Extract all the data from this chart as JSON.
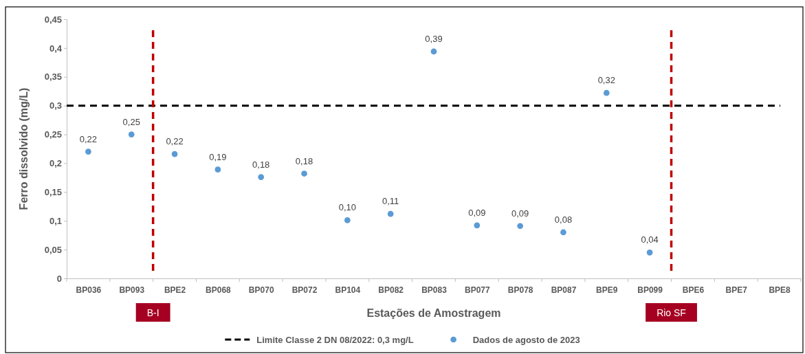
{
  "chart_data": {
    "type": "scatter",
    "xlabel": "Estações de Amostragem",
    "ylabel": "Ferro dissolvido (mg/L)",
    "categories": [
      "BP036",
      "BP093",
      "BPE2",
      "BP068",
      "BP070",
      "BP072",
      "BP104",
      "BP082",
      "BP083",
      "BP077",
      "BP078",
      "BP087",
      "BPE9",
      "BP099",
      "BPE6",
      "BPE7",
      "BPE8"
    ],
    "series": [
      {
        "name": "Dados de agosto de 2023",
        "color": "#5b9bd5",
        "values": [
          0.22,
          0.25,
          0.216,
          0.189,
          0.176,
          0.182,
          0.101,
          0.112,
          0.394,
          0.092,
          0.091,
          0.08,
          0.322,
          0.045,
          null,
          null,
          null
        ],
        "value_labels": [
          "0,22",
          "0,25",
          "0,22",
          "0,19",
          "0,18",
          "0,18",
          "0,10",
          "0,11",
          "0,39",
          "0,09",
          "0,09",
          "0,08",
          "0,32",
          "0,04",
          null,
          null,
          null
        ]
      }
    ],
    "ylim": [
      0,
      0.45
    ],
    "yticks": [
      0,
      {
        "value": 0.05,
        "label": "0,05"
      },
      {
        "value": 0.1,
        "label": "0,1"
      },
      {
        "value": 0.15,
        "label": "0,15"
      },
      {
        "value": 0.2,
        "label": "0,2"
      },
      {
        "value": 0.25,
        "label": "0,25"
      },
      {
        "value": 0.3,
        "label": "0,3"
      },
      {
        "value": 0.35,
        "label": "0,35"
      },
      {
        "value": 0.4,
        "label": "0,4"
      },
      {
        "value": 0.45,
        "label": "0,45"
      }
    ],
    "ref_lines": [
      {
        "axis": "y",
        "value": 0.3,
        "label": "Limite Classe 2 DN 08/2022: 0,3 mg/L",
        "color": "#000000",
        "line_style": "dashed"
      }
    ],
    "annotations": [
      "B-I",
      "Rio SF"
    ],
    "marker": "circle",
    "grid": false,
    "legend": "bottom"
  }
}
